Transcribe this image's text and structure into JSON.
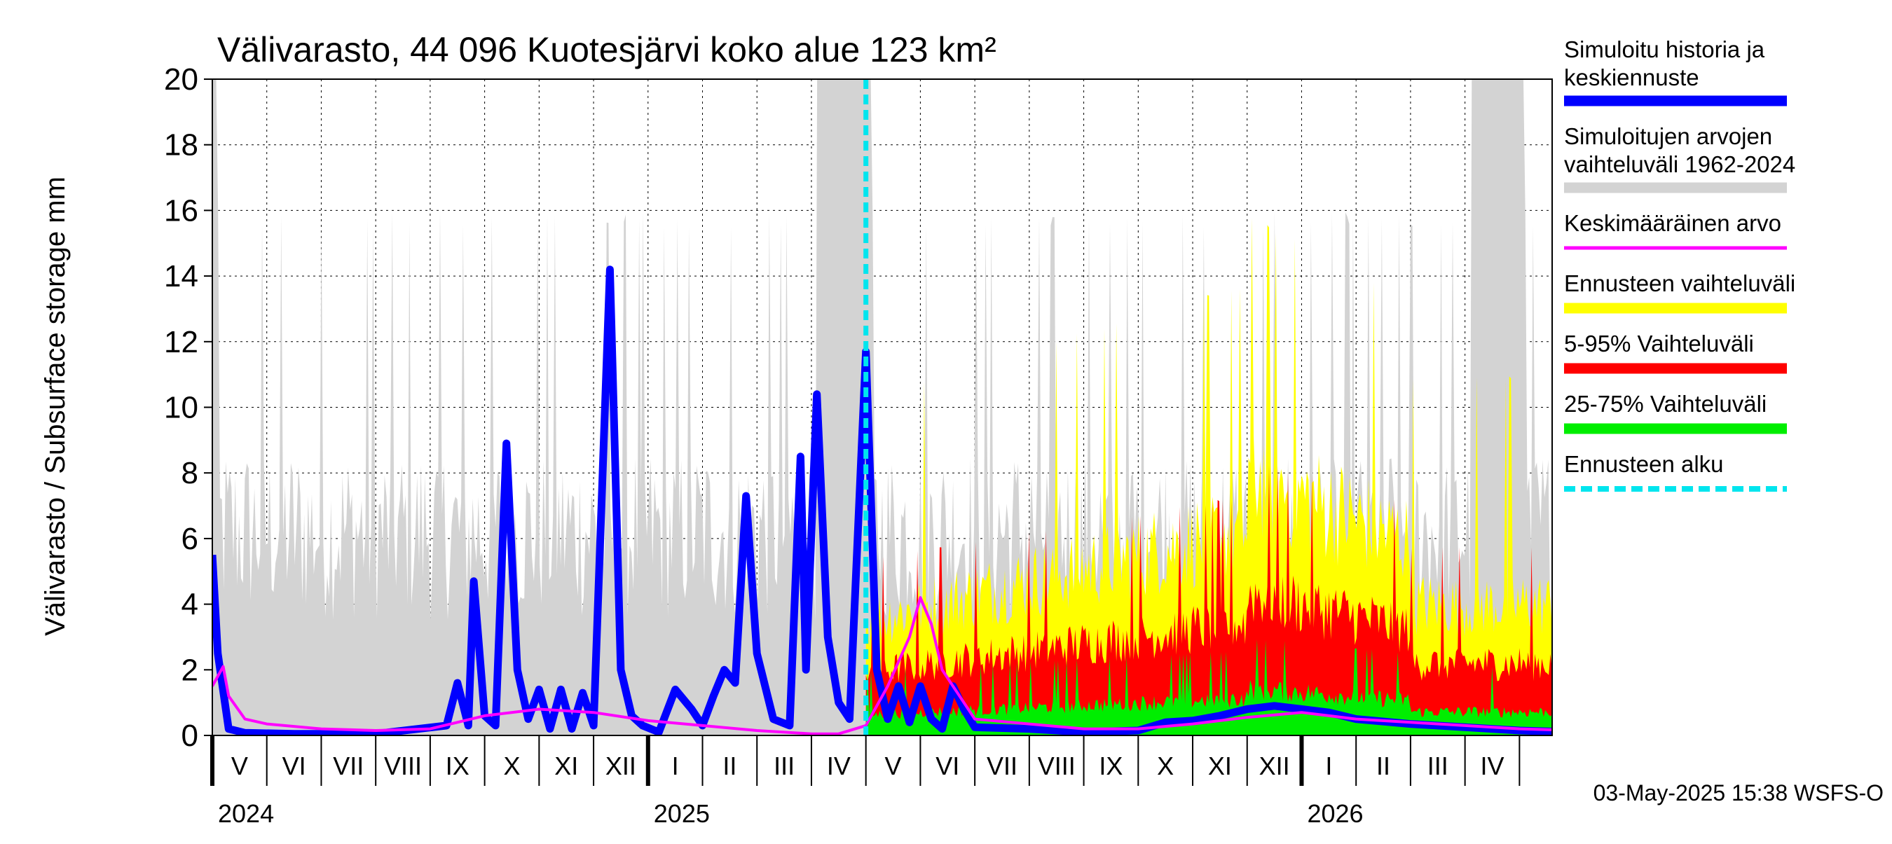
{
  "chart_data": {
    "type": "area",
    "title": "Välivarasto, 44 096 Kuotesjärvi koko alue 123 km²",
    "ylabel": "Välivarasto / Subsurface storage  mm",
    "ylim": [
      0,
      20
    ],
    "yticks": [
      "0",
      "2",
      "4",
      "6",
      "8",
      "10",
      "12",
      "14",
      "16",
      "18",
      "20"
    ],
    "months": [
      "V",
      "VI",
      "VII",
      "VIII",
      "IX",
      "X",
      "XI",
      "XII",
      "I",
      "II",
      "III",
      "IV",
      "V",
      "VI",
      "VII",
      "VIII",
      "IX",
      "X",
      "XI",
      "XII",
      "I",
      "II",
      "III",
      "IV"
    ],
    "years": [
      "2024",
      "2025",
      "2026"
    ],
    "forecast_start_month_index": 12,
    "legend": [
      {
        "label": "Simuloitu historia ja",
        "label2": "keskiennuste",
        "color": "#0000ff",
        "style": "thick"
      },
      {
        "label": "Simuloitujen arvojen",
        "label2": "vaihteluväli 1962-2024",
        "color": "#d3d3d3",
        "style": "thick"
      },
      {
        "label": "Keskimääräinen arvo",
        "color": "#ff00ff",
        "style": "thin"
      },
      {
        "label": "Ennusteen vaihteluväli",
        "color": "#ffff00",
        "style": "thick"
      },
      {
        "label": "5-95% Vaihteluväli",
        "color": "#ff0000",
        "style": "thick"
      },
      {
        "label": "25-75% Vaihteluväli",
        "color": "#00ee00",
        "style": "thick"
      },
      {
        "label": "Ennusteen alku",
        "color": "#00e5ee",
        "style": "dashed"
      }
    ],
    "footer": "03-May-2025 15:38 WSFS-O",
    "series": [
      {
        "name": "Simuloitu historia ja keskiennuste",
        "points": [
          [
            0,
            5.5
          ],
          [
            0.1,
            2.5
          ],
          [
            0.3,
            0.2
          ],
          [
            0.6,
            0.08
          ],
          [
            1.5,
            0.05
          ],
          [
            3,
            0.05
          ],
          [
            4.3,
            0.3
          ],
          [
            4.5,
            1.6
          ],
          [
            4.7,
            0.3
          ],
          [
            4.8,
            4.7
          ],
          [
            5,
            0.6
          ],
          [
            5.2,
            0.3
          ],
          [
            5.4,
            8.9
          ],
          [
            5.6,
            2
          ],
          [
            5.8,
            0.5
          ],
          [
            6,
            1.4
          ],
          [
            6.2,
            0.2
          ],
          [
            6.4,
            1.4
          ],
          [
            6.6,
            0.2
          ],
          [
            6.8,
            1.3
          ],
          [
            7,
            0.3
          ],
          [
            7.3,
            14.2
          ],
          [
            7.5,
            2
          ],
          [
            7.7,
            0.6
          ],
          [
            7.9,
            0.3
          ],
          [
            8.2,
            0.1
          ],
          [
            8.5,
            1.4
          ],
          [
            8.8,
            0.8
          ],
          [
            9,
            0.3
          ],
          [
            9.2,
            1.2
          ],
          [
            9.4,
            2
          ],
          [
            9.6,
            1.6
          ],
          [
            9.8,
            7.3
          ],
          [
            10,
            2.5
          ],
          [
            10.3,
            0.5
          ],
          [
            10.6,
            0.3
          ],
          [
            10.8,
            8.5
          ],
          [
            10.9,
            2
          ],
          [
            11.1,
            10.4
          ],
          [
            11.3,
            3
          ],
          [
            11.5,
            1
          ],
          [
            11.7,
            0.5
          ],
          [
            12,
            11.7
          ],
          [
            12.2,
            2
          ],
          [
            12.4,
            0.5
          ],
          [
            12.6,
            1.5
          ],
          [
            12.8,
            0.4
          ],
          [
            13,
            1.5
          ],
          [
            13.2,
            0.5
          ],
          [
            13.4,
            0.2
          ],
          [
            13.6,
            1.5
          ],
          [
            13.8,
            0.8
          ],
          [
            14,
            0.25
          ],
          [
            15,
            0.2
          ],
          [
            16,
            0.1
          ],
          [
            17,
            0.15
          ],
          [
            17.5,
            0.4
          ],
          [
            18,
            0.45
          ],
          [
            18.5,
            0.6
          ],
          [
            19,
            0.8
          ],
          [
            19.5,
            0.9
          ],
          [
            20,
            0.8
          ],
          [
            20.5,
            0.7
          ],
          [
            21,
            0.5
          ],
          [
            22,
            0.35
          ],
          [
            23,
            0.25
          ],
          [
            24,
            0.15
          ],
          [
            25,
            0.1
          ],
          [
            25.5,
            0.2
          ],
          [
            26,
            0.5
          ],
          [
            26.5,
            1.6
          ],
          [
            26.8,
            3.5
          ],
          [
            27,
            4.2
          ],
          [
            27.2,
            5.2
          ],
          [
            27.4,
            4.5
          ],
          [
            27.6,
            6.6
          ],
          [
            27.8,
            4
          ],
          [
            28,
            2.5
          ],
          [
            28.3,
            1.5
          ],
          [
            28.5,
            2.6
          ]
        ]
      },
      {
        "name": "Keskimääräinen arvo",
        "points": [
          [
            0,
            1.5
          ],
          [
            0.2,
            2.1
          ],
          [
            0.3,
            1.2
          ],
          [
            0.6,
            0.5
          ],
          [
            1,
            0.35
          ],
          [
            2,
            0.2
          ],
          [
            3,
            0.15
          ],
          [
            4,
            0.2
          ],
          [
            5,
            0.6
          ],
          [
            6,
            0.8
          ],
          [
            7,
            0.7
          ],
          [
            8,
            0.45
          ],
          [
            9,
            0.3
          ],
          [
            10,
            0.15
          ],
          [
            11,
            0.05
          ],
          [
            11.5,
            0.05
          ],
          [
            12,
            0.3
          ],
          [
            12.4,
            1.5
          ],
          [
            12.8,
            3
          ],
          [
            13,
            4.2
          ],
          [
            13.2,
            3.4
          ],
          [
            13.4,
            2
          ],
          [
            13.6,
            1.5
          ],
          [
            14,
            0.5
          ],
          [
            15,
            0.35
          ],
          [
            16,
            0.2
          ],
          [
            17,
            0.2
          ],
          [
            18,
            0.35
          ],
          [
            19,
            0.55
          ],
          [
            20,
            0.7
          ],
          [
            21,
            0.5
          ],
          [
            22,
            0.4
          ],
          [
            23,
            0.3
          ],
          [
            24,
            0.2
          ],
          [
            25,
            0.15
          ],
          [
            26,
            0.3
          ],
          [
            26.5,
            1.2
          ],
          [
            27,
            3
          ],
          [
            27.3,
            4.3
          ],
          [
            27.6,
            3
          ],
          [
            28,
            2.5
          ],
          [
            28.5,
            1.3
          ]
        ]
      }
    ]
  }
}
